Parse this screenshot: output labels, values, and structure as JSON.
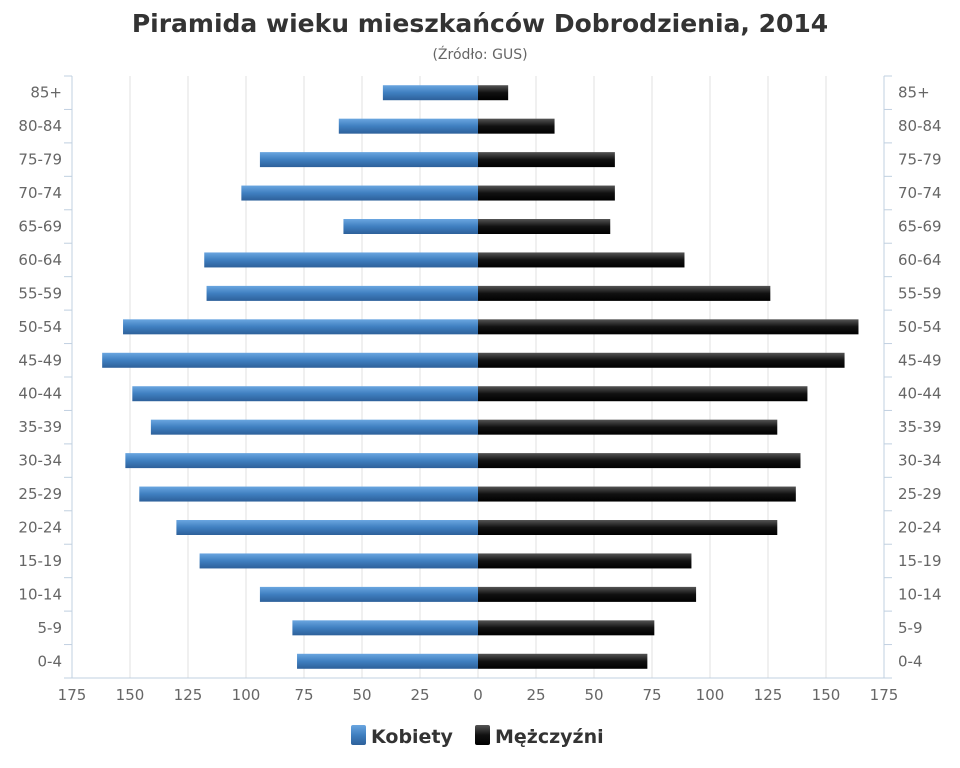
{
  "chart_data": {
    "type": "bar",
    "orientation": "horizontal-population-pyramid",
    "title": "Piramida wieku mieszkańców Dobrodzienia, 2014",
    "subtitle": "(Źródło: GUS)",
    "categories": [
      "85+",
      "80-84",
      "75-79",
      "70-74",
      "65-69",
      "60-64",
      "55-59",
      "50-54",
      "45-49",
      "40-44",
      "35-39",
      "30-34",
      "25-29",
      "20-24",
      "15-19",
      "10-14",
      "5-9",
      "0-4"
    ],
    "series": [
      {
        "name": "Kobiety",
        "color": "#4a88c8",
        "side": "left",
        "values": [
          41,
          60,
          94,
          102,
          58,
          118,
          117,
          153,
          162,
          149,
          141,
          152,
          146,
          130,
          120,
          94,
          80,
          78
        ]
      },
      {
        "name": "Mężczyźni",
        "color": "#111111",
        "side": "right",
        "values": [
          13,
          33,
          59,
          59,
          57,
          89,
          126,
          164,
          158,
          142,
          129,
          139,
          137,
          129,
          92,
          94,
          76,
          73
        ]
      }
    ],
    "xticks": [
      175,
      150,
      125,
      100,
      75,
      50,
      25,
      0,
      25,
      50,
      75,
      100,
      125,
      150,
      175
    ],
    "xlim": [
      -175,
      175
    ],
    "grid": true,
    "legend_position": "bottom"
  }
}
